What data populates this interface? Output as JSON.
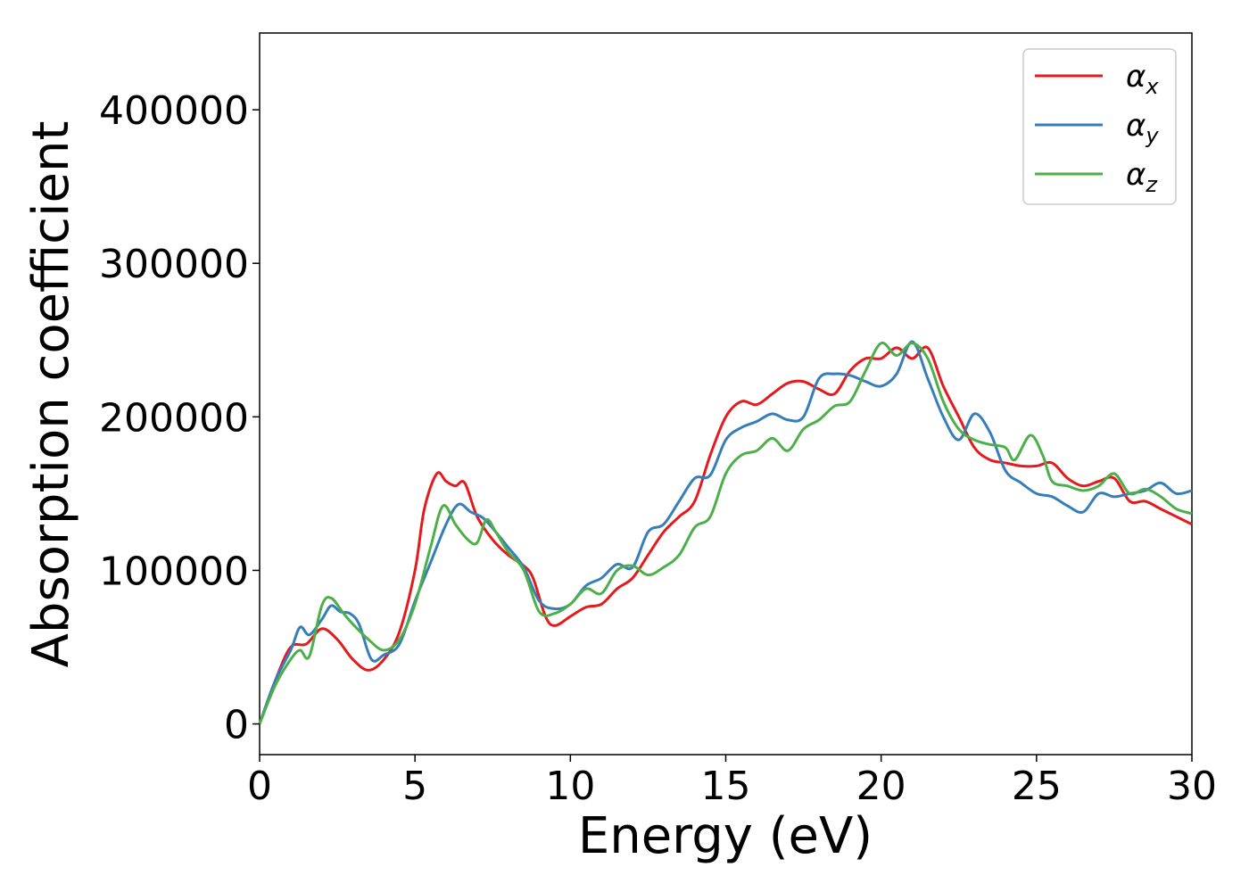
{
  "chart_data": {
    "type": "line",
    "title": "",
    "xlabel": "Energy (eV)",
    "ylabel": "Absorption coefficient",
    "xlim": [
      0,
      30
    ],
    "ylim": [
      -20000,
      450000
    ],
    "xticks": [
      0,
      5,
      10,
      15,
      20,
      25,
      30
    ],
    "yticks": [
      0,
      100000,
      200000,
      300000,
      400000
    ],
    "grid": false,
    "legend_position": "top-right",
    "series": [
      {
        "name": "α",
        "subscript": "x",
        "color": "#e41a1c",
        "x": [
          0,
          0.5,
          1.0,
          1.5,
          2.0,
          2.5,
          3.0,
          3.5,
          4.0,
          4.5,
          5.0,
          5.3,
          5.7,
          6.0,
          6.3,
          6.6,
          7.0,
          7.5,
          8.0,
          8.5,
          8.8,
          9.2,
          9.5,
          10.0,
          10.5,
          11.0,
          11.5,
          12.0,
          12.5,
          13.0,
          13.5,
          14.0,
          14.5,
          15.0,
          15.5,
          16.0,
          16.5,
          17.0,
          17.5,
          18.0,
          18.5,
          19.0,
          19.5,
          20.0,
          20.5,
          21.0,
          21.5,
          22.0,
          22.5,
          23.0,
          23.5,
          24.0,
          24.5,
          25.0,
          25.5,
          26.0,
          26.5,
          27.0,
          27.5,
          28.0,
          28.5,
          29.0,
          29.5,
          30.0
        ],
        "y": [
          0,
          28000,
          50000,
          52000,
          62000,
          55000,
          42000,
          35000,
          42000,
          60000,
          100000,
          140000,
          163000,
          158000,
          155000,
          157000,
          135000,
          120000,
          110000,
          103000,
          95000,
          70000,
          64000,
          70000,
          76000,
          78000,
          88000,
          95000,
          110000,
          125000,
          135000,
          145000,
          175000,
          200000,
          210000,
          208000,
          215000,
          222000,
          223000,
          218000,
          215000,
          230000,
          238000,
          238000,
          245000,
          238000,
          245000,
          220000,
          200000,
          180000,
          172000,
          170000,
          168000,
          168000,
          170000,
          160000,
          155000,
          158000,
          160000,
          145000,
          145000,
          140000,
          135000,
          130000
        ]
      },
      {
        "name": "α",
        "subscript": "y",
        "color": "#377eb8",
        "x": [
          0,
          0.5,
          1.0,
          1.3,
          1.6,
          2.0,
          2.3,
          2.6,
          2.9,
          3.2,
          3.6,
          4.0,
          4.5,
          5.0,
          5.5,
          6.0,
          6.4,
          6.8,
          7.2,
          7.6,
          8.0,
          8.5,
          9.0,
          9.5,
          10.0,
          10.5,
          11.0,
          11.5,
          12.0,
          12.5,
          13.0,
          13.5,
          14.0,
          14.5,
          15.0,
          15.5,
          16.0,
          16.5,
          17.0,
          17.5,
          18.0,
          18.5,
          19.0,
          19.5,
          20.0,
          20.5,
          21.0,
          21.5,
          22.0,
          22.5,
          23.0,
          23.5,
          24.0,
          24.5,
          25.0,
          25.5,
          26.0,
          26.5,
          27.0,
          27.5,
          28.0,
          28.5,
          29.0,
          29.5,
          30.0
        ],
        "y": [
          0,
          28000,
          48000,
          63000,
          58000,
          68000,
          77000,
          73000,
          72000,
          65000,
          42000,
          45000,
          52000,
          80000,
          105000,
          130000,
          143000,
          138000,
          134000,
          125000,
          115000,
          102000,
          80000,
          75000,
          78000,
          90000,
          95000,
          104000,
          102000,
          125000,
          130000,
          145000,
          160000,
          162000,
          185000,
          193000,
          197000,
          202000,
          198000,
          200000,
          225000,
          228000,
          227000,
          223000,
          220000,
          228000,
          249000,
          225000,
          200000,
          185000,
          202000,
          190000,
          165000,
          157000,
          150000,
          148000,
          142000,
          138000,
          150000,
          148000,
          150000,
          152000,
          157000,
          150000,
          152000
        ]
      },
      {
        "name": "α",
        "subscript": "z",
        "color": "#4daf4a",
        "x": [
          0,
          0.5,
          1.0,
          1.3,
          1.6,
          2.0,
          2.3,
          2.7,
          3.0,
          3.5,
          4.0,
          4.5,
          5.0,
          5.5,
          5.9,
          6.3,
          6.7,
          7.0,
          7.3,
          7.6,
          8.0,
          8.5,
          9.0,
          9.5,
          10.0,
          10.5,
          11.0,
          11.5,
          12.0,
          12.5,
          13.0,
          13.5,
          14.0,
          14.5,
          15.0,
          15.5,
          16.0,
          16.5,
          17.0,
          17.5,
          18.0,
          18.5,
          19.0,
          19.5,
          20.0,
          20.5,
          21.0,
          21.5,
          22.0,
          22.5,
          23.0,
          23.5,
          24.0,
          24.3,
          24.8,
          25.2,
          25.5,
          26.0,
          26.5,
          27.0,
          27.5,
          28.0,
          28.5,
          29.0,
          29.5,
          30.0
        ],
        "y": [
          0,
          25000,
          42000,
          48000,
          44000,
          77000,
          82000,
          72000,
          65000,
          55000,
          48000,
          55000,
          78000,
          115000,
          142000,
          130000,
          120000,
          118000,
          133000,
          125000,
          112000,
          100000,
          73000,
          72000,
          78000,
          88000,
          85000,
          100000,
          103000,
          97000,
          102000,
          110000,
          128000,
          135000,
          163000,
          175000,
          178000,
          186000,
          178000,
          192000,
          198000,
          207000,
          210000,
          230000,
          248000,
          240000,
          248000,
          238000,
          210000,
          192000,
          185000,
          182000,
          180000,
          172000,
          188000,
          175000,
          158000,
          155000,
          152000,
          155000,
          163000,
          150000,
          153000,
          148000,
          140000,
          137000
        ]
      }
    ]
  }
}
